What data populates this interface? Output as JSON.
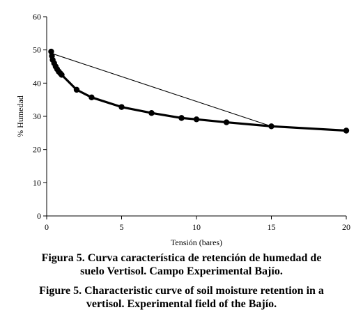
{
  "chart_data": {
    "type": "line",
    "xlabel": "Tensión (bares)",
    "ylabel": "% Humedad",
    "xlim": [
      0,
      20
    ],
    "ylim": [
      0,
      60
    ],
    "xticks": [
      0,
      5,
      10,
      15,
      20
    ],
    "yticks": [
      0,
      10,
      20,
      30,
      40,
      50,
      60
    ],
    "grid": false,
    "series": [
      {
        "style": "thick line with circular markers",
        "x": [
          0.3,
          0.35,
          0.4,
          0.5,
          0.6,
          0.7,
          0.8,
          0.9,
          1.0,
          2.0,
          3.0,
          5.0,
          7.0,
          9.0,
          10.0,
          12.0,
          15.0,
          20.0
        ],
        "y": [
          49.5,
          48.2,
          47.0,
          46.0,
          45.0,
          44.2,
          43.5,
          43.0,
          42.5,
          38.0,
          35.7,
          32.8,
          31.0,
          29.5,
          29.1,
          28.2,
          27.0,
          25.7
        ]
      },
      {
        "style": "thin straight line",
        "x": [
          0.3,
          15.0
        ],
        "y": [
          49.0,
          27.0
        ]
      }
    ]
  },
  "colors": {
    "line": "#000000",
    "background": "#ffffff"
  },
  "caption": {
    "es_line1": "Figura 5. Curva característica de retención de humedad de",
    "es_line2": "suelo Vertisol. Campo Experimental Bajío.",
    "en_line1": "Figure 5. Characteristic curve of soil moisture retention in a",
    "en_line2": "vertisol. Experimental field of the Bajío."
  }
}
